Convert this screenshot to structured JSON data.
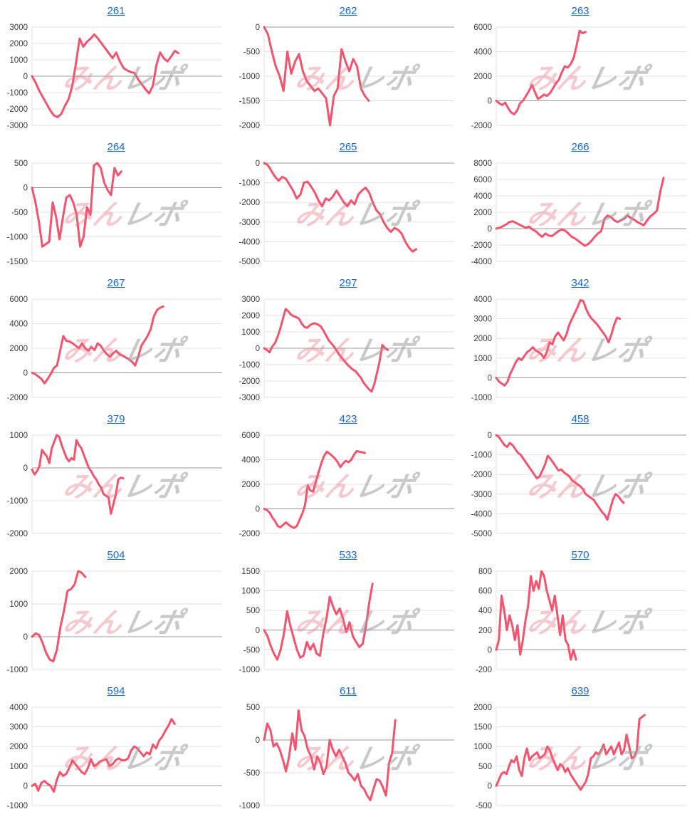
{
  "page": {
    "background": "#ffffff"
  },
  "style": {
    "line_color": "#f4536e",
    "grid_color": "#e3e3e3",
    "zero_line_color": "#9a9a9a",
    "tick_color": "#3c3c3c",
    "title_color": "#1769d6"
  },
  "watermark": {
    "pink_text": "みん",
    "gray_text": "レポ",
    "pink_color": "#e87286",
    "gray_color": "#9e9e9e"
  },
  "chart_data": [
    {
      "type": "line",
      "title": "261",
      "ymin": -3000,
      "ymax": 3000,
      "ystep": 1000,
      "span": 0.77,
      "values": [
        0,
        -400,
        -900,
        -1300,
        -1700,
        -2100,
        -2400,
        -2500,
        -2300,
        -1800,
        -1400,
        -600,
        800,
        2300,
        1800,
        2100,
        2300,
        2550,
        2300,
        2000,
        1700,
        1400,
        1100,
        1450,
        900,
        500,
        350,
        250,
        200,
        -200,
        -500,
        -800,
        -1050,
        -600,
        700,
        1450,
        1100,
        900,
        1200,
        1550,
        1400
      ]
    },
    {
      "type": "line",
      "title": "262",
      "ymin": -2000,
      "ymax": 0,
      "ystep": 500,
      "span": 0.55,
      "values": [
        0,
        -150,
        -500,
        -800,
        -1000,
        -1300,
        -500,
        -950,
        -700,
        -550,
        -900,
        -1100,
        -1200,
        -1300,
        -1250,
        -1350,
        -1450,
        -2000,
        -1400,
        -1250,
        -450,
        -700,
        -900,
        -650,
        -800,
        -1250,
        -1400,
        -1500
      ]
    },
    {
      "type": "line",
      "title": "263",
      "ymin": -2000,
      "ymax": 6000,
      "ystep": 2000,
      "span": 0.47,
      "values": [
        0,
        -200,
        -350,
        -150,
        -600,
        -950,
        -1100,
        -800,
        -200,
        0,
        400,
        800,
        1300,
        700,
        150,
        300,
        500,
        400,
        600,
        1000,
        1400,
        1700,
        2300,
        2800,
        2700,
        3000,
        3500,
        4500,
        5700,
        5500,
        5600
      ]
    },
    {
      "type": "line",
      "title": "264",
      "ymin": -1500,
      "ymax": 500,
      "ystep": 500,
      "span": 0.47,
      "values": [
        0,
        -300,
        -700,
        -1200,
        -1150,
        -1100,
        -300,
        -600,
        -1050,
        -600,
        -200,
        -150,
        -300,
        -550,
        -1200,
        -1000,
        -400,
        -550,
        450,
        500,
        400,
        100,
        -50,
        -150,
        400,
        250,
        330
      ]
    },
    {
      "type": "line",
      "title": "265",
      "ymin": -5000,
      "ymax": 0,
      "ystep": 1000,
      "span": 0.8,
      "values": [
        0,
        -100,
        -400,
        -700,
        -900,
        -700,
        -800,
        -1100,
        -1400,
        -1800,
        -1600,
        -1000,
        -950,
        -1200,
        -1500,
        -1900,
        -2200,
        -1800,
        -1900,
        -1700,
        -1400,
        -1700,
        -2000,
        -2200,
        -1900,
        -2100,
        -1600,
        -1400,
        -1250,
        -1500,
        -2000,
        -2400,
        -2600,
        -3000,
        -3300,
        -3500,
        -3300,
        -3400,
        -3600,
        -4000,
        -4300,
        -4500,
        -4380
      ]
    },
    {
      "type": "line",
      "title": "266",
      "ymin": -4000,
      "ymax": 8000,
      "ystep": 2000,
      "span": 0.88,
      "values": [
        0,
        100,
        300,
        500,
        800,
        900,
        700,
        500,
        300,
        100,
        250,
        -100,
        -300,
        -700,
        -1000,
        -600,
        -850,
        -900,
        -600,
        -300,
        -100,
        -250,
        -600,
        -1000,
        -1200,
        -1500,
        -1800,
        -2100,
        -1900,
        -1500,
        -1000,
        -600,
        -300,
        1200,
        1600,
        1400,
        1000,
        800,
        1000,
        1200,
        1600,
        1300,
        1100,
        800,
        600,
        400,
        1000,
        1500,
        1800,
        2200,
        4500,
        6200
      ]
    },
    {
      "type": "line",
      "title": "267",
      "ymin": -2000,
      "ymax": 6000,
      "ystep": 2000,
      "span": 0.69,
      "values": [
        0,
        -100,
        -300,
        -500,
        -850,
        -500,
        -100,
        400,
        600,
        1800,
        3000,
        2600,
        2550,
        2400,
        2200,
        2000,
        2400,
        2000,
        1800,
        2100,
        1850,
        2400,
        2200,
        1800,
        1500,
        1300,
        1600,
        1800,
        1500,
        1400,
        1250,
        1100,
        900,
        600,
        1300,
        2200,
        2600,
        3000,
        3550,
        4600,
        5100,
        5300,
        5400
      ]
    },
    {
      "type": "line",
      "title": "297",
      "ymin": -3000,
      "ymax": 3000,
      "ystep": 1000,
      "span": 0.65,
      "values": [
        0,
        -100,
        -250,
        100,
        300,
        700,
        1200,
        1800,
        2400,
        2250,
        2050,
        1950,
        1900,
        1800,
        1500,
        1300,
        1250,
        1400,
        1500,
        1520,
        1450,
        1350,
        1100,
        800,
        500,
        300,
        100,
        -150,
        -400,
        -600,
        -800,
        -1000,
        -1150,
        -1300,
        -1400,
        -1600,
        -1800,
        -2100,
        -2300,
        -2500,
        -2650,
        -2200,
        -1500,
        -800,
        200,
        0,
        -100
      ]
    },
    {
      "type": "line",
      "title": "342",
      "ymin": -1000,
      "ymax": 4000,
      "ystep": 1000,
      "span": 0.65,
      "values": [
        0,
        -200,
        -300,
        -400,
        -200,
        200,
        500,
        800,
        1000,
        900,
        1100,
        1300,
        1400,
        1550,
        1400,
        1300,
        1200,
        1000,
        1300,
        1800,
        1700,
        2100,
        2300,
        2100,
        1900,
        2200,
        2700,
        3000,
        3300,
        3600,
        3950,
        3900,
        3500,
        3200,
        3000,
        2850,
        2700,
        2500,
        2300,
        2100,
        1800,
        2200,
        2700,
        3050,
        3000
      ]
    },
    {
      "type": "line",
      "title": "379",
      "ymin": -2000,
      "ymax": 1000,
      "ystep": 1000,
      "span": 0.48,
      "values": [
        -50,
        -200,
        -100,
        50,
        550,
        450,
        350,
        150,
        600,
        800,
        1000,
        950,
        700,
        500,
        300,
        200,
        300,
        250,
        850,
        700,
        600,
        400,
        200,
        0,
        -100,
        -250,
        -350,
        -500,
        -600,
        -800,
        -850,
        -900,
        -1400,
        -1100,
        -800,
        -350,
        -300,
        -320
      ]
    },
    {
      "type": "line",
      "title": "423",
      "ymin": -2000,
      "ymax": 6000,
      "ystep": 2000,
      "span": 0.53,
      "values": [
        0,
        -100,
        -300,
        -700,
        -1000,
        -1400,
        -1500,
        -1300,
        -1100,
        -1300,
        -1450,
        -1550,
        -1400,
        -900,
        -400,
        300,
        1900,
        1500,
        1400,
        2200,
        3000,
        3700,
        4300,
        4650,
        4500,
        4300,
        4100,
        3800,
        3400,
        3700,
        3900,
        3800,
        4000,
        4400,
        4700,
        4650,
        4600,
        4550
      ]
    },
    {
      "type": "line",
      "title": "458",
      "ymin": -5000,
      "ymax": 0,
      "ystep": 1000,
      "span": 0.67,
      "values": [
        0,
        -100,
        -300,
        -500,
        -600,
        -400,
        -500,
        -700,
        -900,
        -1000,
        -1200,
        -1400,
        -1600,
        -1800,
        -2000,
        -2200,
        -2100,
        -1800,
        -1500,
        -1050,
        -1200,
        -1400,
        -1600,
        -1800,
        -1750,
        -1900,
        -2000,
        -2100,
        -2300,
        -2400,
        -2500,
        -2600,
        -2750,
        -3000,
        -3100,
        -3200,
        -3300,
        -3500,
        -3700,
        -3900,
        -4050,
        -4300,
        -3800,
        -3300,
        -3000,
        -3100,
        -3300,
        -3450
      ]
    },
    {
      "type": "line",
      "title": "504",
      "ymin": -1000,
      "ymax": 2000,
      "ystep": 1000,
      "span": 0.28,
      "values": [
        0,
        100,
        50,
        -200,
        -500,
        -700,
        -750,
        -400,
        300,
        800,
        1400,
        1450,
        1600,
        2000,
        1950,
        1820
      ]
    },
    {
      "type": "line",
      "title": "533",
      "ymin": -1000,
      "ymax": 1500,
      "ystep": 500,
      "span": 0.57,
      "values": [
        0,
        -150,
        -400,
        -600,
        -750,
        -500,
        -100,
        480,
        100,
        -200,
        -500,
        -700,
        -650,
        -300,
        -500,
        -350,
        -600,
        -650,
        -100,
        300,
        850,
        600,
        400,
        550,
        300,
        -50,
        200,
        -150,
        -300,
        -430,
        -350,
        100,
        700,
        1180
      ]
    },
    {
      "type": "line",
      "title": "570",
      "ymin": -200,
      "ymax": 800,
      "ystep": 200,
      "span": 0.42,
      "values": [
        0,
        100,
        550,
        400,
        200,
        350,
        250,
        100,
        250,
        -50,
        100,
        300,
        450,
        750,
        600,
        700,
        620,
        800,
        750,
        600,
        500,
        400,
        550,
        350,
        150,
        350,
        100,
        50,
        -100,
        0,
        -100
      ]
    },
    {
      "type": "line",
      "title": "594",
      "ymin": -1000,
      "ymax": 4000,
      "ystep": 1000,
      "span": 0.75,
      "values": [
        0,
        100,
        -250,
        150,
        250,
        100,
        0,
        -300,
        300,
        700,
        500,
        600,
        900,
        1300,
        1100,
        900,
        700,
        600,
        900,
        1350,
        1000,
        1100,
        1250,
        1300,
        1350,
        1000,
        1100,
        1300,
        1400,
        1300,
        1300,
        1400,
        1800,
        2000,
        1900,
        1700,
        1500,
        1700,
        1600,
        2100,
        1900,
        2300,
        2500,
        2800,
        3050,
        3400,
        3150
      ]
    },
    {
      "type": "line",
      "title": "611",
      "ymin": -1000,
      "ymax": 500,
      "ystep": 500,
      "span": 0.69,
      "values": [
        0,
        250,
        150,
        -100,
        -50,
        -150,
        -300,
        -480,
        -250,
        100,
        -150,
        450,
        150,
        50,
        -150,
        -250,
        -450,
        -250,
        -350,
        -520,
        -400,
        0,
        -150,
        -250,
        -150,
        -250,
        -350,
        -500,
        -550,
        -620,
        -520,
        -700,
        -750,
        -850,
        -920,
        -750,
        -600,
        -620,
        -720,
        -850,
        -350,
        -200,
        300
      ]
    },
    {
      "type": "line",
      "title": "639",
      "ymin": -500,
      "ymax": 2000,
      "ystep": 500,
      "span": 0.78,
      "values": [
        0,
        150,
        300,
        350,
        300,
        500,
        650,
        600,
        750,
        400,
        250,
        700,
        950,
        650,
        750,
        800,
        850,
        700,
        750,
        800,
        1000,
        900,
        700,
        550,
        400,
        550,
        500,
        350,
        450,
        300,
        200,
        100,
        0,
        -100,
        0,
        100,
        300,
        700,
        750,
        850,
        800,
        900,
        1050,
        800,
        900,
        1000,
        800,
        950,
        1100,
        800,
        900,
        1300,
        1000,
        700,
        750,
        900,
        1700,
        1750,
        1800
      ]
    }
  ]
}
